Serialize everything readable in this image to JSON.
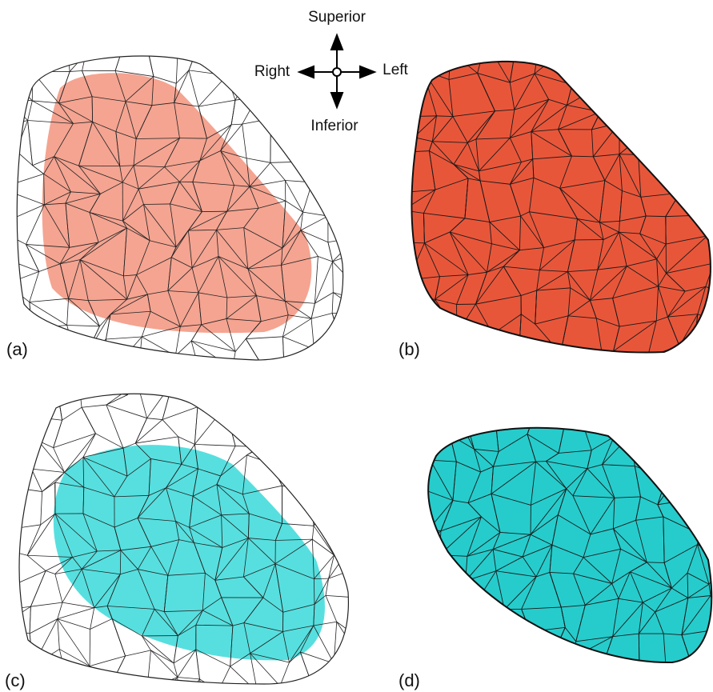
{
  "compass": {
    "superior": "Superior",
    "right": "Right",
    "left": "Left",
    "inferior": "Inferior"
  },
  "panels": [
    {
      "label": "(a)"
    },
    {
      "label": "(b)"
    },
    {
      "label": "(c)"
    },
    {
      "label": "(d)"
    }
  ]
}
